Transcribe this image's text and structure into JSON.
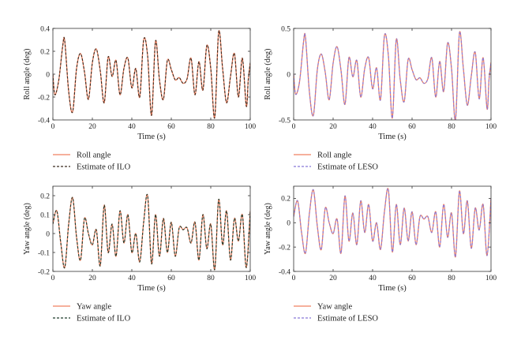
{
  "chart_data": [
    {
      "type": "line",
      "xlabel": "Time (s)",
      "ylabel": "Roll angle (deg)",
      "xlim": [
        0,
        100
      ],
      "ylim": [
        -0.4,
        0.4
      ],
      "xticks": [
        0,
        20,
        40,
        60,
        80,
        100
      ],
      "yticks": [
        -0.4,
        -0.2,
        0,
        0.2,
        0.4
      ],
      "x": [
        0,
        1,
        3,
        5,
        6,
        8,
        10,
        12,
        14,
        16,
        18,
        20,
        22,
        24,
        26,
        28,
        30,
        32,
        34,
        36,
        38,
        40,
        42,
        44,
        46,
        48,
        50,
        52,
        54,
        56,
        58,
        60,
        62,
        64,
        66,
        68,
        70,
        72,
        74,
        76,
        78,
        80,
        82,
        84,
        86,
        88,
        90,
        92,
        94,
        96,
        98,
        99,
        100
      ],
      "series": [
        {
          "name": "Roll angle",
          "color": "#f08060",
          "dash": "solid",
          "values": [
            0,
            -0.18,
            -0.05,
            0.25,
            0.29,
            -0.15,
            -0.33,
            0.05,
            0.18,
            0.02,
            -0.22,
            0.1,
            0.22,
            0.03,
            -0.25,
            0.15,
            -0.02,
            0.12,
            -0.18,
            0.05,
            0.14,
            -0.12,
            0.05,
            -0.2,
            0.3,
            0.16,
            -0.36,
            0.29,
            -0.05,
            -0.22,
            0.12,
            0.04,
            -0.05,
            -0.03,
            -0.08,
            -0.04,
            0.14,
            -0.18,
            0.11,
            -0.14,
            0.25,
            0.05,
            -0.38,
            0.37,
            0.05,
            -0.25,
            -0.02,
            0.18,
            -0.2,
            0.14,
            -0.28,
            -0.05,
            0.1
          ]
        },
        {
          "name": "Estimate of ILO",
          "color": "#3a2a1e",
          "dash": "dashed",
          "values": [
            0,
            -0.18,
            -0.05,
            0.25,
            0.29,
            -0.15,
            -0.33,
            0.05,
            0.18,
            0.02,
            -0.22,
            0.1,
            0.22,
            0.03,
            -0.25,
            0.15,
            -0.02,
            0.12,
            -0.18,
            0.05,
            0.14,
            -0.12,
            0.05,
            -0.2,
            0.3,
            0.16,
            -0.36,
            0.29,
            -0.05,
            -0.22,
            0.12,
            0.04,
            -0.05,
            -0.03,
            -0.08,
            -0.04,
            0.14,
            -0.18,
            0.11,
            -0.14,
            0.25,
            0.05,
            -0.38,
            0.37,
            0.05,
            -0.25,
            -0.02,
            0.18,
            -0.2,
            0.14,
            -0.28,
            -0.05,
            0.1
          ]
        }
      ]
    },
    {
      "type": "line",
      "xlabel": "Time (s)",
      "ylabel": "Roll angle (deg)",
      "xlim": [
        0,
        100
      ],
      "ylim": [
        -0.5,
        0.5
      ],
      "xticks": [
        0,
        20,
        40,
        60,
        80,
        100
      ],
      "yticks": [
        -0.5,
        0,
        0.5
      ],
      "x": [
        0,
        1,
        3,
        5,
        6,
        8,
        10,
        12,
        14,
        16,
        18,
        20,
        22,
        24,
        26,
        28,
        30,
        32,
        34,
        36,
        38,
        40,
        42,
        44,
        46,
        48,
        50,
        52,
        54,
        56,
        58,
        60,
        62,
        64,
        66,
        68,
        70,
        72,
        74,
        76,
        78,
        80,
        82,
        84,
        86,
        88,
        90,
        92,
        94,
        96,
        98,
        99,
        100
      ],
      "series": [
        {
          "name": "Roll angle",
          "color": "#f08060",
          "dash": "solid",
          "values": [
            0,
            -0.22,
            -0.08,
            0.35,
            0.4,
            -0.2,
            -0.45,
            0.05,
            0.22,
            0.02,
            -0.28,
            0.12,
            0.3,
            0.04,
            -0.33,
            0.18,
            -0.03,
            0.15,
            -0.25,
            0.06,
            0.18,
            -0.16,
            0.07,
            -0.28,
            0.42,
            0.2,
            -0.48,
            0.38,
            -0.06,
            -0.3,
            0.16,
            0.05,
            -0.06,
            -0.04,
            -0.1,
            -0.05,
            0.18,
            -0.25,
            0.14,
            -0.19,
            0.34,
            0.06,
            -0.5,
            0.45,
            0.06,
            -0.34,
            -0.02,
            0.24,
            -0.27,
            0.18,
            -0.38,
            -0.06,
            0.13
          ]
        },
        {
          "name": "Estimate of LESO",
          "color": "#8878d8",
          "dash": "dashed",
          "values": [
            0,
            -0.22,
            -0.08,
            0.35,
            0.4,
            -0.2,
            -0.45,
            0.05,
            0.22,
            0.02,
            -0.28,
            0.12,
            0.3,
            0.04,
            -0.33,
            0.18,
            -0.03,
            0.15,
            -0.25,
            0.06,
            0.18,
            -0.16,
            0.07,
            -0.28,
            0.42,
            0.2,
            -0.48,
            0.38,
            -0.06,
            -0.3,
            0.16,
            0.05,
            -0.06,
            -0.04,
            -0.1,
            -0.05,
            0.18,
            -0.25,
            0.14,
            -0.19,
            0.34,
            0.06,
            -0.5,
            0.45,
            0.06,
            -0.34,
            -0.02,
            0.24,
            -0.27,
            0.18,
            -0.38,
            -0.06,
            0.13
          ]
        }
      ]
    },
    {
      "type": "line",
      "xlabel": "Time (s)",
      "ylabel": "Yaw angle (deg)",
      "xlim": [
        0,
        100
      ],
      "ylim": [
        -0.2,
        0.25
      ],
      "xticks": [
        0,
        20,
        40,
        60,
        80,
        100
      ],
      "yticks": [
        -0.2,
        -0.1,
        0,
        0.1,
        0.2
      ],
      "x": [
        0,
        2,
        4,
        6,
        8,
        10,
        12,
        14,
        16,
        18,
        20,
        22,
        24,
        26,
        28,
        30,
        32,
        34,
        36,
        38,
        40,
        42,
        44,
        46,
        48,
        50,
        52,
        54,
        56,
        58,
        60,
        62,
        64,
        66,
        68,
        70,
        72,
        74,
        76,
        78,
        80,
        82,
        84,
        86,
        88,
        90,
        92,
        94,
        96,
        98,
        100
      ],
      "series": [
        {
          "name": "Yaw angle",
          "color": "#f08060",
          "dash": "solid",
          "values": [
            0.05,
            0.12,
            -0.05,
            -0.18,
            0.05,
            0.19,
            -0.02,
            -0.14,
            0.08,
            0.0,
            -0.06,
            0.02,
            -0.17,
            0.15,
            -0.1,
            0.05,
            -0.12,
            0.12,
            -0.05,
            0.1,
            -0.1,
            0.0,
            -0.15,
            0.06,
            0.2,
            -0.16,
            0.1,
            -0.12,
            0.08,
            -0.1,
            0.06,
            -0.12,
            0.03,
            0.02,
            0.03,
            -0.05,
            0.06,
            -0.14,
            0.1,
            -0.08,
            0.05,
            -0.19,
            0.18,
            -0.06,
            0.12,
            -0.14,
            0.08,
            -0.04,
            0.1,
            -0.18,
            0.12
          ]
        },
        {
          "name": "Estimate of ILO",
          "color": "#1e3a2a",
          "dash": "dashed",
          "values": [
            0.05,
            0.12,
            -0.05,
            -0.18,
            0.05,
            0.19,
            -0.02,
            -0.14,
            0.08,
            0.0,
            -0.06,
            0.02,
            -0.17,
            0.15,
            -0.1,
            0.05,
            -0.12,
            0.12,
            -0.05,
            0.1,
            -0.1,
            0.0,
            -0.15,
            0.06,
            0.2,
            -0.16,
            0.1,
            -0.12,
            0.08,
            -0.1,
            0.06,
            -0.12,
            0.03,
            0.02,
            0.03,
            -0.05,
            0.06,
            -0.14,
            0.1,
            -0.08,
            0.05,
            -0.19,
            0.18,
            -0.06,
            0.12,
            -0.14,
            0.08,
            -0.04,
            0.1,
            -0.18,
            0.12
          ]
        }
      ]
    },
    {
      "type": "line",
      "xlabel": "Time (s)",
      "ylabel": "Yaw angle (deg)",
      "xlim": [
        0,
        100
      ],
      "ylim": [
        -0.4,
        0.3
      ],
      "xticks": [
        0,
        20,
        40,
        60,
        80,
        100
      ],
      "yticks": [
        -0.4,
        -0.2,
        0,
        0.2
      ],
      "x": [
        0,
        2,
        4,
        6,
        8,
        10,
        12,
        14,
        16,
        18,
        20,
        22,
        24,
        26,
        28,
        30,
        32,
        34,
        36,
        38,
        40,
        42,
        44,
        46,
        48,
        50,
        52,
        54,
        56,
        58,
        60,
        62,
        64,
        66,
        68,
        70,
        72,
        74,
        76,
        78,
        80,
        82,
        84,
        86,
        88,
        90,
        92,
        94,
        96,
        98,
        100
      ],
      "series": [
        {
          "name": "Yaw angle",
          "color": "#f08060",
          "dash": "solid",
          "values": [
            0.05,
            0.18,
            -0.08,
            -0.25,
            0.08,
            0.27,
            -0.03,
            -0.22,
            0.12,
            0.0,
            -0.09,
            0.03,
            -0.25,
            0.22,
            -0.15,
            0.08,
            -0.18,
            0.18,
            -0.08,
            0.15,
            -0.15,
            0.0,
            -0.22,
            0.09,
            0.27,
            -0.24,
            0.15,
            -0.18,
            0.12,
            -0.15,
            0.09,
            -0.18,
            0.05,
            0.03,
            0.05,
            -0.08,
            0.09,
            -0.2,
            0.15,
            -0.12,
            0.08,
            -0.28,
            0.26,
            -0.09,
            0.18,
            -0.21,
            0.12,
            -0.06,
            0.15,
            -0.27,
            0.2
          ]
        },
        {
          "name": "Estimate of LESO",
          "color": "#8878d8",
          "dash": "dashed",
          "values": [
            0.05,
            0.18,
            -0.08,
            -0.25,
            0.08,
            0.27,
            -0.03,
            -0.22,
            0.12,
            0.0,
            -0.09,
            0.03,
            -0.25,
            0.22,
            -0.15,
            0.08,
            -0.18,
            0.18,
            -0.08,
            0.15,
            -0.15,
            0.0,
            -0.22,
            0.09,
            0.27,
            -0.24,
            0.15,
            -0.18,
            0.12,
            -0.15,
            0.09,
            -0.18,
            0.05,
            0.03,
            0.05,
            -0.08,
            0.09,
            -0.2,
            0.15,
            -0.12,
            0.08,
            -0.28,
            0.26,
            -0.09,
            0.18,
            -0.21,
            0.12,
            -0.06,
            0.15,
            -0.27,
            0.2
          ]
        }
      ]
    }
  ]
}
